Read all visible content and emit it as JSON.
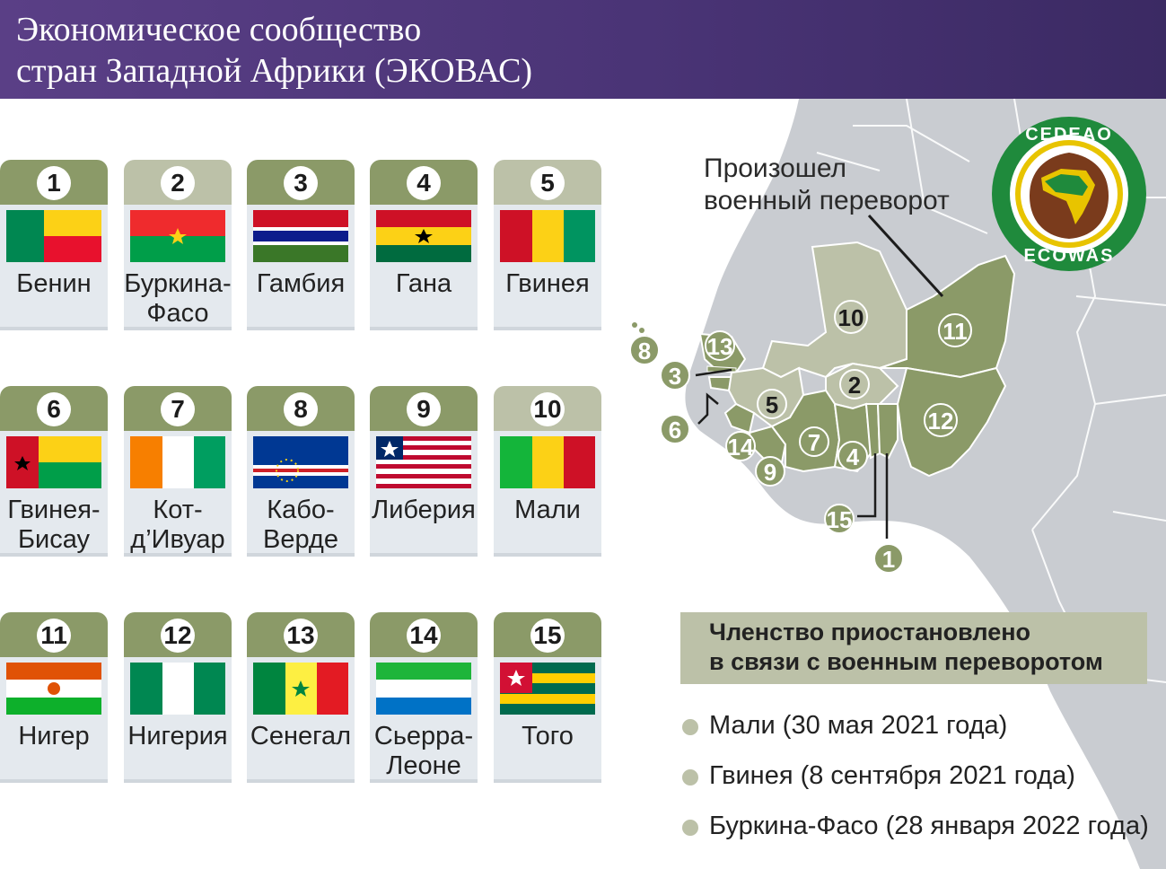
{
  "header": {
    "title_line1": "Экономическое сообщество",
    "title_line2": "стран Западной Африки (ЭКОВАС)"
  },
  "countries": [
    {
      "num": "1",
      "name": "Бенин",
      "suspended": false,
      "flag": "benin"
    },
    {
      "num": "2",
      "name": "Буркина-\nФасо",
      "suspended": true,
      "flag": "burkina-faso"
    },
    {
      "num": "3",
      "name": "Гамбия",
      "suspended": false,
      "flag": "gambia"
    },
    {
      "num": "4",
      "name": "Гана",
      "suspended": false,
      "flag": "ghana"
    },
    {
      "num": "5",
      "name": "Гвинея",
      "suspended": true,
      "flag": "guinea"
    },
    {
      "num": "6",
      "name": "Гвинея-\nБисау",
      "suspended": false,
      "flag": "guinea-bissau"
    },
    {
      "num": "7",
      "name": "Кот-\nд’Ивуар",
      "suspended": false,
      "flag": "cote-divoire"
    },
    {
      "num": "8",
      "name": "Кабо-\nВерде",
      "suspended": false,
      "flag": "cabo-verde"
    },
    {
      "num": "9",
      "name": "Либерия",
      "suspended": false,
      "flag": "liberia"
    },
    {
      "num": "10",
      "name": "Мали",
      "suspended": true,
      "flag": "mali"
    },
    {
      "num": "11",
      "name": "Нигер",
      "suspended": false,
      "flag": "niger"
    },
    {
      "num": "12",
      "name": "Нигерия",
      "suspended": false,
      "flag": "nigeria"
    },
    {
      "num": "13",
      "name": "Сенегал",
      "suspended": false,
      "flag": "senegal"
    },
    {
      "num": "14",
      "name": "Сьерра-\nЛеоне",
      "suspended": false,
      "flag": "sierra-leone"
    },
    {
      "num": "15",
      "name": "Того",
      "suspended": false,
      "flag": "togo"
    }
  ],
  "map": {
    "coup_label": "Произошел\nвоенный переворот",
    "markers": [
      "1",
      "2",
      "3",
      "4",
      "5",
      "6",
      "7",
      "8",
      "9",
      "10",
      "11",
      "12",
      "13",
      "14",
      "15"
    ]
  },
  "logo": {
    "top_text": "CEDEAO",
    "bottom_text": "ECOWAS"
  },
  "suspended": {
    "title": "Членство приостановлено\nв связи с военным переворотом",
    "items": [
      "Мали (30 мая 2021 года)",
      "Гвинея (8 сентября 2021 года)",
      "Буркина-Фасо (28 января 2022 года)"
    ]
  },
  "colors": {
    "header_bg": "#4a3476",
    "active_green": "#8b9a68",
    "suspended_green": "#bcc1a8",
    "map_gray": "#c9ccd1",
    "card_bg": "#e4e9ee"
  }
}
